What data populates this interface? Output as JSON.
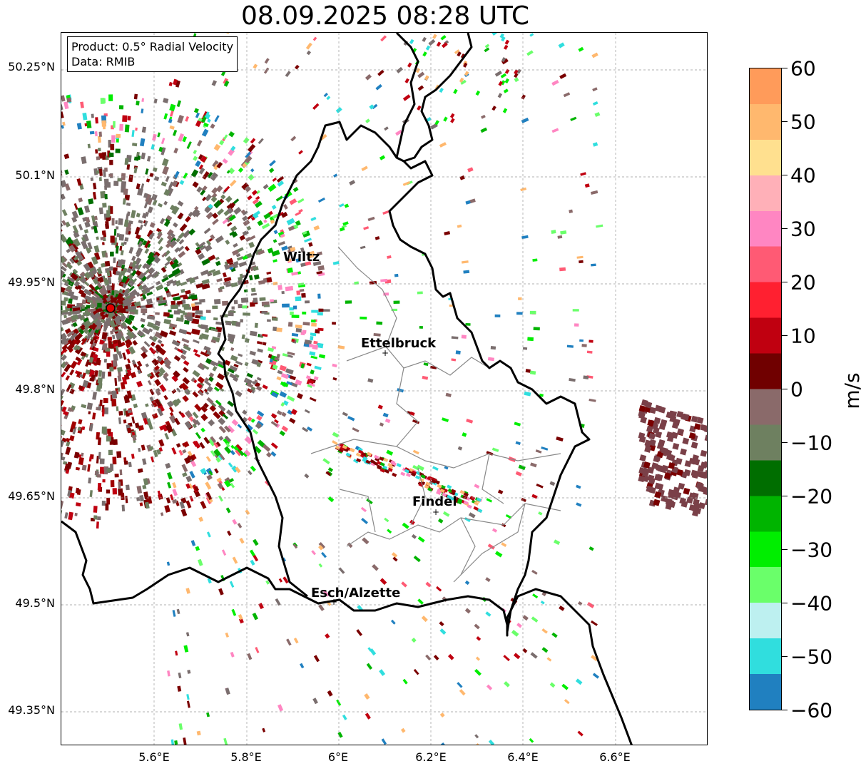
{
  "title": "08.09.2025 08:28 UTC",
  "info": {
    "product": "Product: 0.5° Radial Velocity",
    "data": "Data: RMIB"
  },
  "lat_labels": [
    "50.25°N",
    "50.1°N",
    "49.95°N",
    "49.8°N",
    "49.65°N",
    "49.5°N",
    "49.35°N"
  ],
  "lon_labels": [
    "5.6°E",
    "5.8°E",
    "6°E",
    "6.2°E",
    "6.4°E",
    "6.6°E"
  ],
  "colorbar": {
    "unit": "m/s",
    "ticks": [
      "60",
      "50",
      "40",
      "30",
      "20",
      "10",
      "0",
      "−10",
      "−20",
      "−30",
      "−40",
      "−50",
      "−60"
    ],
    "colors": [
      "#ff9b5a",
      "#ffb86e",
      "#ffe08f",
      "#ffb0b8",
      "#ff86c2",
      "#ff5a74",
      "#ff2030",
      "#c00010",
      "#700000",
      "#8a6a6a",
      "#6e8060",
      "#006e00",
      "#00b400",
      "#00ee00",
      "#6aff6a",
      "#bdf0f0",
      "#30dede",
      "#2080c0"
    ]
  },
  "cities": [
    "Wiltz",
    "Ettelbruck",
    "Findel",
    "Esch/Alzette"
  ],
  "radar_site_color": "#e00000"
}
